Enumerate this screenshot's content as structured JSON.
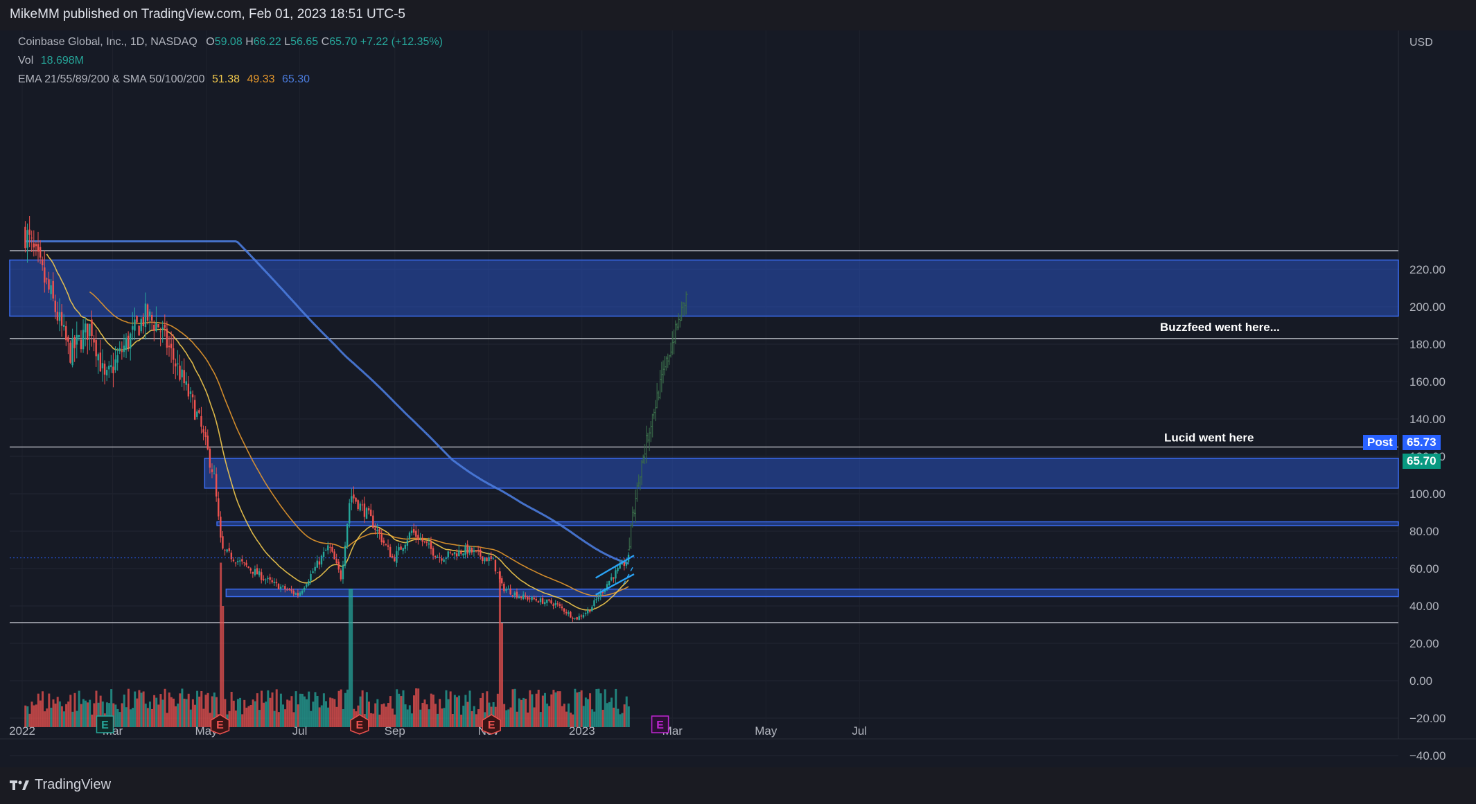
{
  "header": {
    "published": "MikeMM published on TradingView.com, Feb 01, 2023 18:51 UTC-5"
  },
  "legend": {
    "symbol": "Coinbase Global, Inc., 1D, NASDAQ",
    "o_label": "O",
    "o_value": "59.08",
    "h_label": "H",
    "h_value": "66.22",
    "l_label": "L",
    "l_value": "56.65",
    "c_label": "C",
    "c_value": "65.70",
    "change": "+7.22 (+12.35%)",
    "vol_label": "Vol",
    "vol_value": "18.698M",
    "ema_label": "EMA 21/55/89/200 & SMA 50/100/200",
    "ema_v1": "51.38",
    "ema_v2": "49.33",
    "ema_v3": "65.30"
  },
  "price_tags": {
    "post_label": "Post",
    "post_value": "65.73",
    "last_value": "65.70"
  },
  "footer": {
    "brand": "TradingView"
  },
  "colors": {
    "up": "#26a69a",
    "down": "#ef5350",
    "zone": "#2a52be",
    "ema_short": "#f2c94c",
    "ema_mid": "#e6982c",
    "sma_long": "#4a7bdc",
    "post_tag": "#2962ff"
  },
  "chart_data": {
    "type": "candlestick",
    "currency": "USD",
    "ylim": [
      -40,
      230
    ],
    "y_ticks": [
      "220.00",
      "200.00",
      "180.00",
      "160.00",
      "140.00",
      "120.00",
      "100.00",
      "80.00",
      "60.00",
      "40.00",
      "20.00",
      "0.00",
      "−20.00",
      "−40.00"
    ],
    "y_tick_values": [
      220,
      200,
      180,
      160,
      140,
      120,
      100,
      80,
      60,
      40,
      20,
      0,
      -20,
      -40
    ],
    "x_ticks": [
      "2022",
      "Mar",
      "May",
      "Jul",
      "Sep",
      "Nov",
      "2023",
      "Mar",
      "May",
      "Jul"
    ],
    "close_path": [
      [
        "2022-01-03",
        240
      ],
      [
        "2022-01-20",
        205
      ],
      [
        "2022-02-01",
        175
      ],
      [
        "2022-02-15",
        190
      ],
      [
        "2022-02-24",
        160
      ],
      [
        "2022-03-08",
        178
      ],
      [
        "2022-03-22",
        195
      ],
      [
        "2022-03-31",
        190
      ],
      [
        "2022-04-12",
        168
      ],
      [
        "2022-04-26",
        140
      ],
      [
        "2022-05-06",
        110
      ],
      [
        "2022-05-11",
        70
      ],
      [
        "2022-05-20",
        65
      ],
      [
        "2022-06-13",
        52
      ],
      [
        "2022-06-30",
        46
      ],
      [
        "2022-07-20",
        72
      ],
      [
        "2022-07-28",
        55
      ],
      [
        "2022-08-03",
        100
      ],
      [
        "2022-08-15",
        88
      ],
      [
        "2022-08-31",
        65
      ],
      [
        "2022-09-12",
        80
      ],
      [
        "2022-09-30",
        66
      ],
      [
        "2022-10-18",
        70
      ],
      [
        "2022-11-04",
        64
      ],
      [
        "2022-11-10",
        50
      ],
      [
        "2022-11-22",
        45
      ],
      [
        "2022-12-15",
        41
      ],
      [
        "2022-12-28",
        33
      ],
      [
        "2023-01-06",
        38
      ],
      [
        "2023-01-20",
        55
      ],
      [
        "2023-02-01",
        65.7
      ]
    ],
    "zones": [
      {
        "from": 195,
        "to": 225
      },
      {
        "from": 103,
        "to": 119
      },
      {
        "from": 83,
        "to": 85
      },
      {
        "from": 45,
        "to": 49
      }
    ],
    "levels": [
      230,
      183,
      125,
      31
    ],
    "annotations": [
      {
        "text": "Buzzfeed went here...",
        "price": 187
      },
      {
        "text": "Lucid went here",
        "price": 128
      }
    ],
    "projection": {
      "from": "2023-02-01",
      "to": "2023-03-10",
      "start": 70,
      "end": 205
    },
    "channel": {
      "from": "2023-01-10",
      "to": "2023-02-04",
      "lower": [
        46,
        57
      ],
      "upper": [
        55,
        67
      ]
    },
    "earnings_markers": [
      "2022-02-24",
      "2022-05-10",
      "2022-08-09",
      "2022-11-03",
      "2023-02-21"
    ],
    "volume_spikes": [
      [
        "2022-05-11",
        0.95
      ],
      [
        "2022-05-12",
        0.7
      ],
      [
        "2022-08-03",
        0.8
      ],
      [
        "2022-11-09",
        0.9
      ],
      [
        "2022-11-10",
        0.6
      ]
    ]
  }
}
